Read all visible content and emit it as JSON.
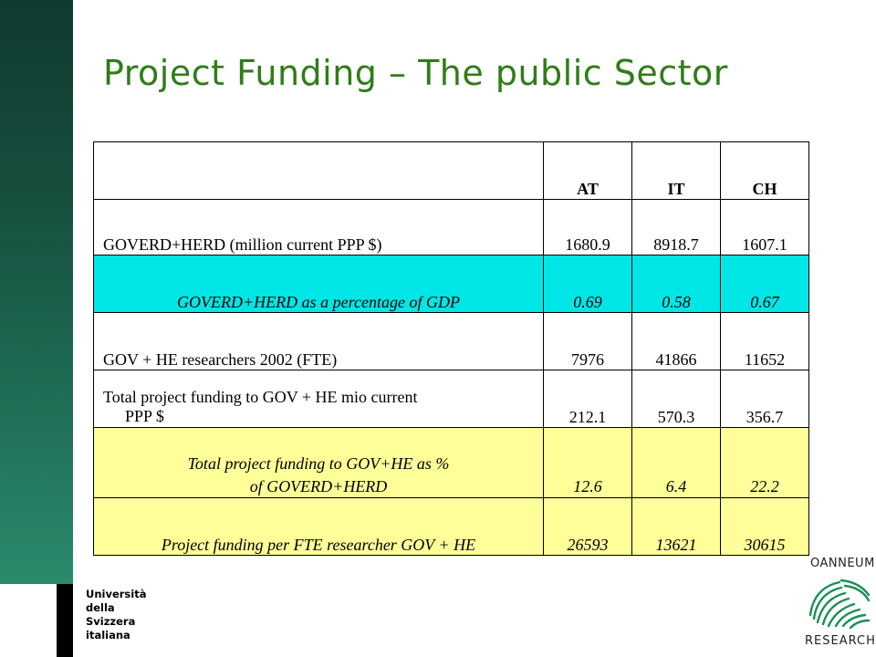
{
  "slide": {
    "title": "Project Funding – The public Sector"
  },
  "table": {
    "columns": [
      "",
      "AT",
      "IT",
      "CH"
    ],
    "rows": [
      {
        "label": "GOVERD+HERD (million current PPP $)",
        "values": [
          "1680.9",
          "8918.7",
          "1607.1"
        ]
      },
      {
        "label": "GOVERD+HERD as a percentage of GDP",
        "values": [
          "0.69",
          "0.58",
          "0.67"
        ]
      },
      {
        "label": "GOV + HE researchers 2002 (FTE)",
        "values": [
          "7976",
          "41866",
          "11652"
        ]
      },
      {
        "label_line1": "Total project funding to GOV + HE mio current",
        "label_line2": "PPP $",
        "values": [
          "212.1",
          "570.3",
          "356.7"
        ]
      },
      {
        "label_line1": "Total project funding to GOV+HE as %",
        "label_line2": "of GOVERD+HERD",
        "values": [
          "12.6",
          "6.4",
          "22.2"
        ]
      },
      {
        "label": "Project funding per FTE researcher  GOV + HE",
        "values": [
          "26593",
          "13621",
          "30615"
        ]
      }
    ]
  },
  "logos": {
    "usi": {
      "line1": "Università",
      "line2": "della",
      "line3": "Svizzera",
      "line4": "italiana"
    },
    "joanneum": {
      "top": "OANNEUM",
      "bottom": "RESEARCH"
    }
  },
  "colors": {
    "title": "#2f7d18",
    "highlight_cyan": "#00e6e6",
    "highlight_yellow": "#ffff99",
    "sidebar": "#17503f"
  }
}
